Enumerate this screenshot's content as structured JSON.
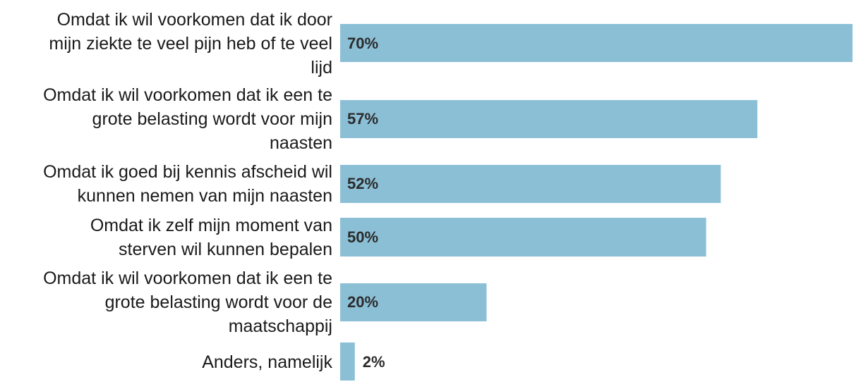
{
  "chart_data": {
    "type": "bar",
    "orientation": "horizontal",
    "title": "",
    "xlabel": "",
    "ylabel": "",
    "xlim": [
      0,
      70
    ],
    "grid": false,
    "legend": "none",
    "bar_color": "#8bbfd6",
    "label_color": "#1a1a1a",
    "value_label_color": "#2b2b2b",
    "categories": [
      [
        "Omdat ik wil voorkomen dat ik door",
        "mijn ziekte te veel pijn heb of te veel",
        "lijd"
      ],
      [
        "Omdat ik wil voorkomen dat ik een te",
        "grote belasting wordt voor mijn",
        "naasten"
      ],
      [
        "Omdat ik goed bij kennis afscheid wil",
        "kunnen nemen van mijn naasten"
      ],
      [
        "Omdat ik zelf mijn moment van",
        "sterven wil kunnen bepalen"
      ],
      [
        "Omdat ik wil voorkomen dat ik een te",
        "grote belasting wordt voor de",
        "maatschappij"
      ],
      [
        "Anders, namelijk"
      ]
    ],
    "values": [
      70,
      57,
      52,
      50,
      20,
      2
    ],
    "value_labels": [
      "70%",
      "57%",
      "52%",
      "50%",
      "20%",
      "2%"
    ]
  }
}
